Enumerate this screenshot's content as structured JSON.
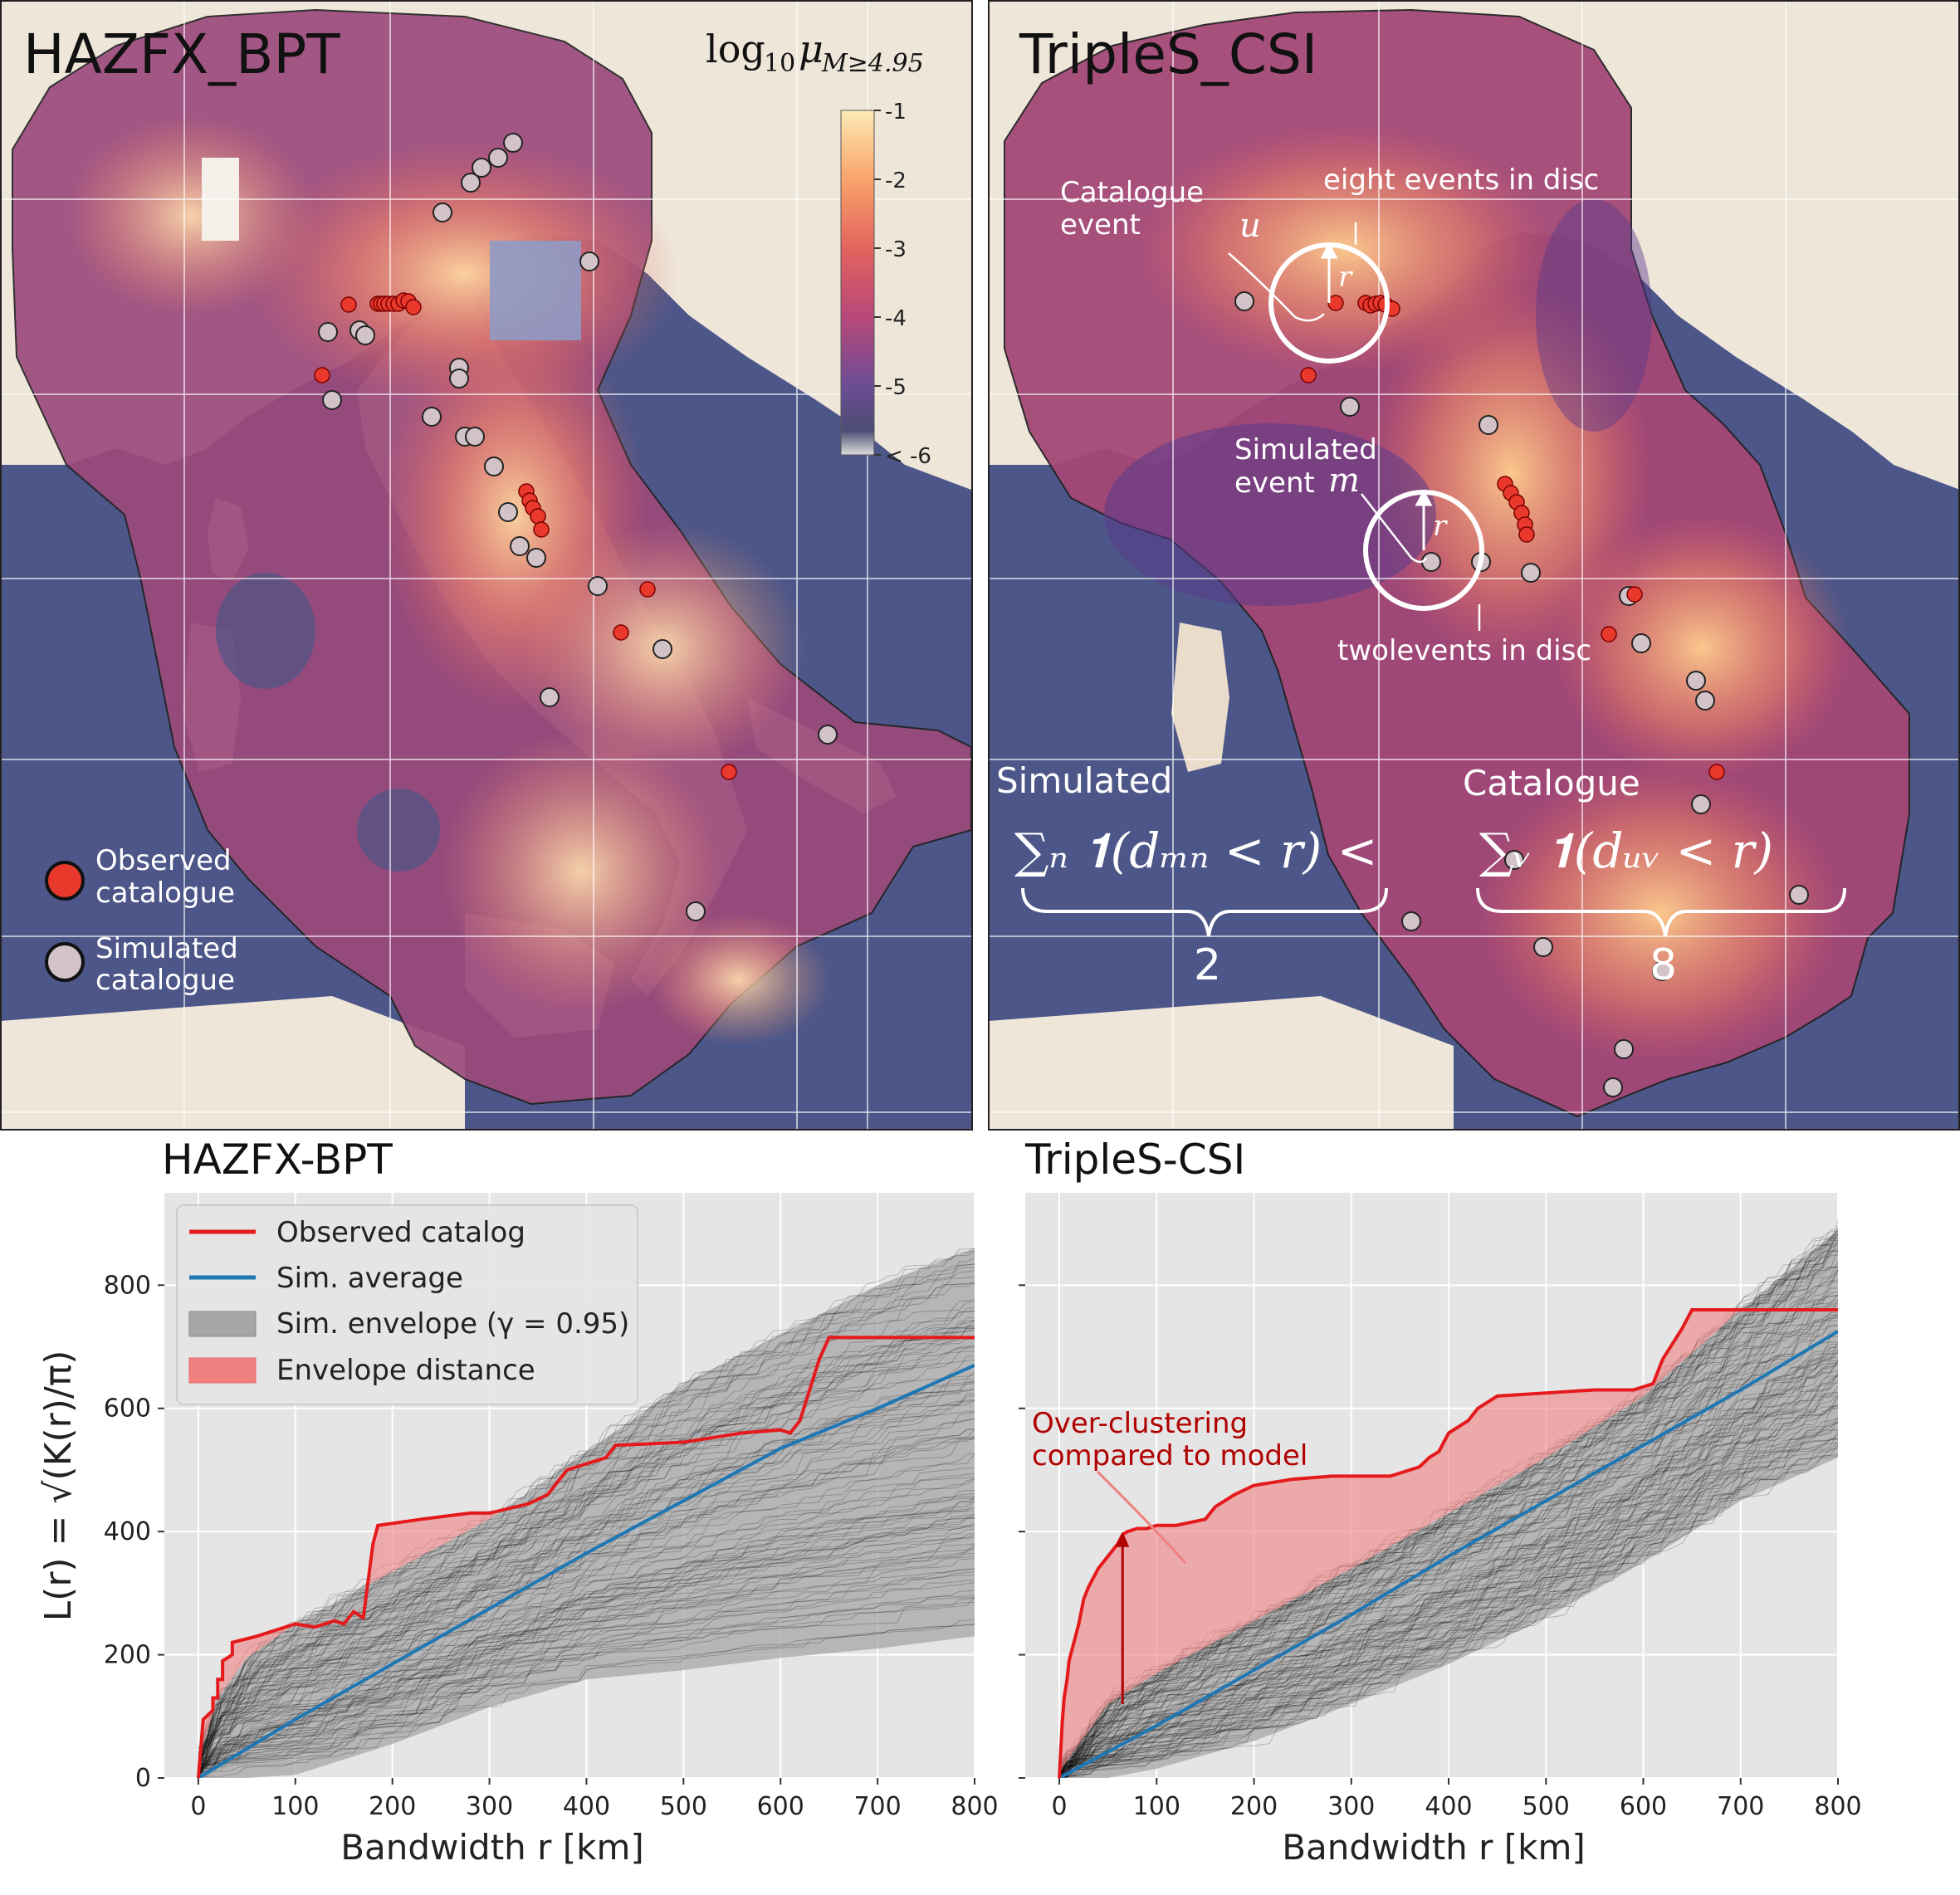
{
  "maps": [
    {
      "title": "HAZFX_BPT",
      "colorbar": {
        "label_main": "log",
        "label_sub": "10",
        "label_mu": "μ",
        "label_cond": "M≥4.95",
        "ticks": [
          "-1",
          "-2",
          "-3",
          "-4",
          "-5",
          "< -6"
        ],
        "colors": [
          "#fcebb4",
          "#f9a36b",
          "#e3645e",
          "#b8487a",
          "#7a4c96",
          "#4c4d74",
          "#dddddd"
        ]
      },
      "legend": [
        {
          "label_line1": "Observed",
          "label_line2": "catalogue",
          "color": "#e8392c"
        },
        {
          "label_line1": "Simulated",
          "label_line2": "catalogue",
          "color": "#d2c3c8"
        }
      ]
    },
    {
      "title": "TripleS_CSI",
      "annotations": {
        "catalogue_event_l1": "Catalogue",
        "catalogue_event_l2": "event",
        "u": "u",
        "r1": "r",
        "eight": "eight events in disc",
        "simulated_event_l1": "Simulated",
        "simulated_event_l2": "event",
        "m": "m",
        "r2": "r",
        "two": "twolevents in disc",
        "simulated": "Simulated",
        "catalogue": "Catalogue",
        "sum_left": "∑ₙ 𝟏(dₘₙ < r) <",
        "sum_right": "∑ᵥ 𝟏(dᵤᵥ < r)",
        "brace_left_value": "2",
        "brace_right_value": "8"
      }
    }
  ],
  "colors": {
    "ocean": "#4d5688",
    "land": "#efe6da",
    "observed": "#e8392c",
    "simulated": "#d2c3c8",
    "observed_line": "#e41a1c",
    "sim_average": "#1f77b4",
    "envelope_fill": "#a6a6a6",
    "envelope_distance": "#f08080",
    "plot_bg": "#e5e5e5"
  },
  "chart_data": [
    {
      "type": "line",
      "title": "HAZFX-BPT",
      "xlabel": "Bandwidth r  [km]",
      "ylabel": "L(r) = √(K(r)/π)",
      "xlim": [
        -35,
        800
      ],
      "ylim": [
        0,
        950
      ],
      "xticks": [
        0,
        100,
        200,
        300,
        400,
        500,
        600,
        700,
        800
      ],
      "yticks": [
        0,
        200,
        400,
        600,
        800
      ],
      "grid": true,
      "legend_position": "top-left",
      "legend": [
        {
          "label": "Observed catalog",
          "kind": "line",
          "color": "#e41a1c"
        },
        {
          "label": "Sim. average",
          "kind": "line",
          "color": "#1f77b4"
        },
        {
          "label": "Sim. envelope (γ = 0.95)",
          "kind": "patch",
          "color": "#a6a6a6"
        },
        {
          "label": "Envelope distance",
          "kind": "patch",
          "color": "#f08080"
        }
      ],
      "series": [
        {
          "name": "Observed catalog",
          "x": [
            0,
            5,
            5,
            15,
            15,
            20,
            20,
            25,
            25,
            35,
            35,
            60,
            100,
            120,
            140,
            150,
            160,
            170,
            180,
            185,
            230,
            280,
            300,
            340,
            360,
            370,
            380,
            400,
            420,
            430,
            500,
            560,
            600,
            610,
            620,
            640,
            650,
            800
          ],
          "y": [
            0,
            95,
            95,
            110,
            130,
            130,
            160,
            160,
            190,
            200,
            220,
            230,
            250,
            245,
            255,
            250,
            270,
            260,
            380,
            410,
            420,
            430,
            430,
            445,
            460,
            480,
            500,
            510,
            520,
            540,
            545,
            560,
            565,
            560,
            580,
            680,
            715,
            715
          ]
        },
        {
          "name": "Sim. average",
          "x": [
            0,
            100,
            200,
            300,
            400,
            500,
            600,
            700,
            800
          ],
          "y": [
            0,
            95,
            185,
            275,
            365,
            450,
            535,
            600,
            670
          ]
        },
        {
          "name": "Sim. envelope upper",
          "x": [
            0,
            20,
            50,
            100,
            200,
            300,
            400,
            500,
            600,
            700,
            800
          ],
          "y": [
            30,
            130,
            195,
            250,
            335,
            420,
            530,
            640,
            720,
            800,
            860
          ]
        },
        {
          "name": "Sim. envelope lower",
          "x": [
            0,
            50,
            100,
            200,
            300,
            400,
            500,
            600,
            700,
            800
          ],
          "y": [
            0,
            0,
            5,
            55,
            115,
            160,
            175,
            195,
            210,
            230
          ]
        }
      ]
    },
    {
      "type": "line",
      "title": "TripleS-CSI",
      "xlabel": "Bandwidth r  [km]",
      "ylabel": "",
      "xlim": [
        -35,
        800
      ],
      "ylim": [
        0,
        950
      ],
      "xticks": [
        0,
        100,
        200,
        300,
        400,
        500,
        600,
        700,
        800
      ],
      "yticks": [
        0,
        200,
        400,
        600,
        800
      ],
      "grid": true,
      "annotation": {
        "line1": "Over-clustering",
        "line2": "compared to model",
        "color": "#b00000"
      },
      "series": [
        {
          "name": "Observed catalog",
          "x": [
            0,
            3,
            5,
            8,
            10,
            15,
            20,
            25,
            30,
            40,
            50,
            60,
            65,
            70,
            80,
            90,
            100,
            120,
            150,
            160,
            180,
            200,
            240,
            280,
            300,
            340,
            370,
            380,
            390,
            400,
            420,
            430,
            440,
            450,
            500,
            550,
            590,
            600,
            610,
            620,
            640,
            650,
            660,
            800
          ],
          "y": [
            0,
            90,
            130,
            160,
            190,
            220,
            250,
            290,
            310,
            340,
            360,
            380,
            395,
            400,
            405,
            405,
            410,
            410,
            420,
            440,
            460,
            475,
            485,
            490,
            490,
            490,
            505,
            520,
            530,
            560,
            580,
            600,
            610,
            620,
            625,
            630,
            630,
            635,
            640,
            680,
            730,
            760,
            760,
            760
          ]
        },
        {
          "name": "Sim. average",
          "x": [
            0,
            100,
            200,
            300,
            400,
            500,
            600,
            700,
            800
          ],
          "y": [
            0,
            85,
            175,
            265,
            360,
            450,
            540,
            630,
            725
          ]
        },
        {
          "name": "Sim. envelope upper",
          "x": [
            0,
            50,
            100,
            200,
            300,
            400,
            500,
            600,
            700,
            800
          ],
          "y": [
            10,
            120,
            170,
            255,
            340,
            430,
            520,
            620,
            760,
            890
          ]
        },
        {
          "name": "Sim. envelope lower",
          "x": [
            0,
            50,
            100,
            200,
            300,
            400,
            500,
            600,
            700,
            800
          ],
          "y": [
            0,
            0,
            15,
            60,
            120,
            185,
            260,
            350,
            450,
            520
          ]
        }
      ]
    }
  ]
}
